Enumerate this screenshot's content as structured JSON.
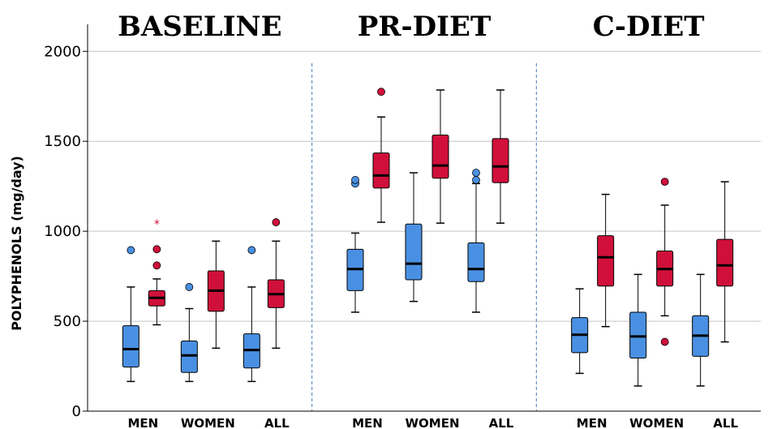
{
  "chart_data": {
    "type": "boxplot",
    "ylabel": "POLYPHENOLS (mg/day)",
    "ylim": [
      0,
      2150
    ],
    "yticks": [
      0,
      500,
      1000,
      1500,
      2000
    ],
    "grid": "horizontal",
    "colors": {
      "group_a": "#4a90e2",
      "group_b": "#d0103a"
    },
    "panels": [
      {
        "title": "BASELINE",
        "categories": [
          "MEN",
          "WOMEN",
          "ALL"
        ],
        "boxes": [
          {
            "color": "group_a",
            "min": 165,
            "q1": 245,
            "median": 345,
            "q3": 475,
            "max": 690,
            "outliers": [
              {
                "v": 895,
                "m": "o"
              }
            ]
          },
          {
            "color": "group_b",
            "min": 480,
            "q1": 585,
            "median": 630,
            "q3": 670,
            "max": 735,
            "outliers": [
              {
                "v": 810,
                "m": "o"
              },
              {
                "v": 900,
                "m": "o"
              },
              {
                "v": 1050,
                "m": "*"
              }
            ]
          },
          {
            "color": "group_a",
            "min": 165,
            "q1": 215,
            "median": 310,
            "q3": 390,
            "max": 570,
            "outliers": [
              {
                "v": 690,
                "m": "o"
              }
            ]
          },
          {
            "color": "group_b",
            "min": 350,
            "q1": 555,
            "median": 670,
            "q3": 780,
            "max": 945,
            "outliers": []
          },
          {
            "color": "group_a",
            "min": 165,
            "q1": 240,
            "median": 340,
            "q3": 430,
            "max": 690,
            "outliers": [
              {
                "v": 895,
                "m": "o"
              }
            ]
          },
          {
            "color": "group_b",
            "min": 350,
            "q1": 575,
            "median": 650,
            "q3": 730,
            "max": 945,
            "outliers": [
              {
                "v": 1050,
                "m": "o"
              }
            ]
          }
        ]
      },
      {
        "title": "PR-DIET",
        "categories": [
          "MEN",
          "WOMEN",
          "ALL"
        ],
        "boxes": [
          {
            "color": "group_a",
            "min": 550,
            "q1": 670,
            "median": 790,
            "q3": 900,
            "max": 990,
            "outliers": [
              {
                "v": 1265,
                "m": "o"
              },
              {
                "v": 1285,
                "m": "o"
              }
            ]
          },
          {
            "color": "group_b",
            "min": 1050,
            "q1": 1240,
            "median": 1310,
            "q3": 1435,
            "max": 1635,
            "outliers": [
              {
                "v": 1775,
                "m": "o"
              }
            ]
          },
          {
            "color": "group_a",
            "min": 610,
            "q1": 730,
            "median": 820,
            "q3": 1040,
            "max": 1325,
            "outliers": []
          },
          {
            "color": "group_b",
            "min": 1045,
            "q1": 1295,
            "median": 1365,
            "q3": 1535,
            "max": 1785,
            "outliers": []
          },
          {
            "color": "group_a",
            "min": 550,
            "q1": 720,
            "median": 790,
            "q3": 935,
            "max": 1265,
            "outliers": [
              {
                "v": 1285,
                "m": "o"
              },
              {
                "v": 1325,
                "m": "o"
              }
            ]
          },
          {
            "color": "group_b",
            "min": 1045,
            "q1": 1270,
            "median": 1360,
            "q3": 1515,
            "max": 1785,
            "outliers": []
          }
        ]
      },
      {
        "title": "C-DIET",
        "categories": [
          "MEN",
          "WOMEN",
          "ALL"
        ],
        "boxes": [
          {
            "color": "group_a",
            "min": 210,
            "q1": 325,
            "median": 425,
            "q3": 520,
            "max": 680,
            "outliers": []
          },
          {
            "color": "group_b",
            "min": 470,
            "q1": 695,
            "median": 855,
            "q3": 975,
            "max": 1205,
            "outliers": []
          },
          {
            "color": "group_a",
            "min": 140,
            "q1": 295,
            "median": 415,
            "q3": 550,
            "max": 760,
            "outliers": []
          },
          {
            "color": "group_b",
            "min": 530,
            "q1": 695,
            "median": 790,
            "q3": 890,
            "max": 1145,
            "outliers": [
              {
                "v": 1275,
                "m": "o"
              },
              {
                "v": 385,
                "m": "o"
              }
            ]
          },
          {
            "color": "group_a",
            "min": 140,
            "q1": 305,
            "median": 420,
            "q3": 530,
            "max": 760,
            "outliers": []
          },
          {
            "color": "group_b",
            "min": 385,
            "q1": 695,
            "median": 810,
            "q3": 955,
            "max": 1275,
            "outliers": []
          }
        ]
      }
    ]
  }
}
